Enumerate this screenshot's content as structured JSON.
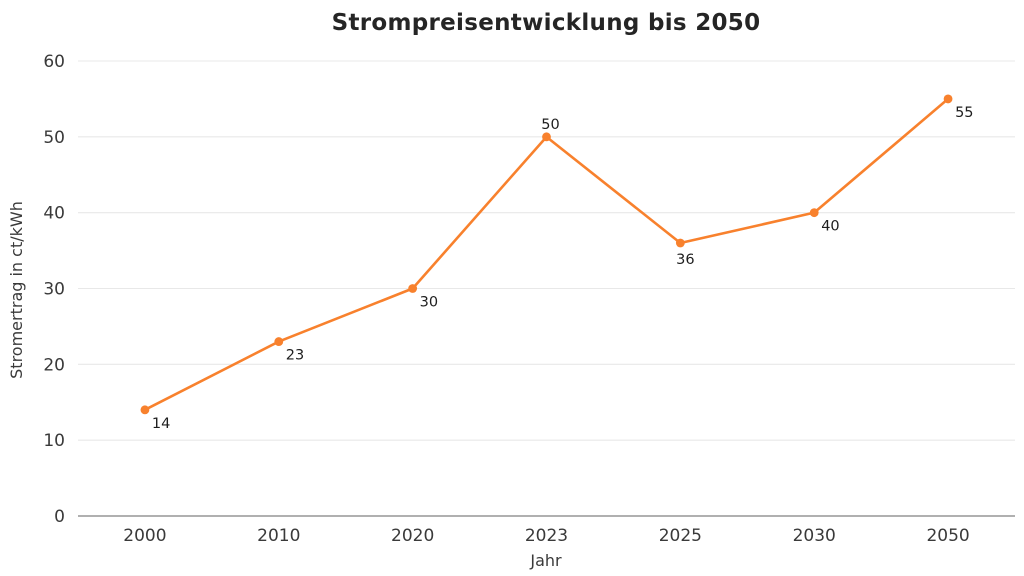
{
  "title": "Strompreisentwicklung bis 2050",
  "chart_data": {
    "type": "line",
    "title": "Strompreisentwicklung bis 2050",
    "xlabel": "Jahr",
    "ylabel": "Stromertrag in ct/kWh",
    "categories": [
      "2000",
      "2010",
      "2020",
      "2023",
      "2025",
      "2030",
      "2050"
    ],
    "values": [
      14,
      23,
      30,
      50,
      36,
      40,
      55
    ],
    "value_labels": [
      "14",
      "23",
      "30",
      "50",
      "36",
      "40",
      "55"
    ],
    "value_label_positions": [
      "below-right",
      "below-right",
      "below-right",
      "above",
      "below",
      "below-right",
      "below-right"
    ],
    "ylim": [
      0,
      60
    ],
    "ytick_step": 10,
    "ytick_labels": [
      "0",
      "10",
      "20",
      "30",
      "40",
      "50",
      "60"
    ],
    "grid": true,
    "legend": "none",
    "colors": {
      "line": "#f8812d",
      "marker": "#f8812d",
      "grid": "#e8e8e8",
      "axis_line": "#959595",
      "title_text": "#252525",
      "tick_text": "#3a3a3a",
      "label_text": "#1e1e1e"
    }
  }
}
